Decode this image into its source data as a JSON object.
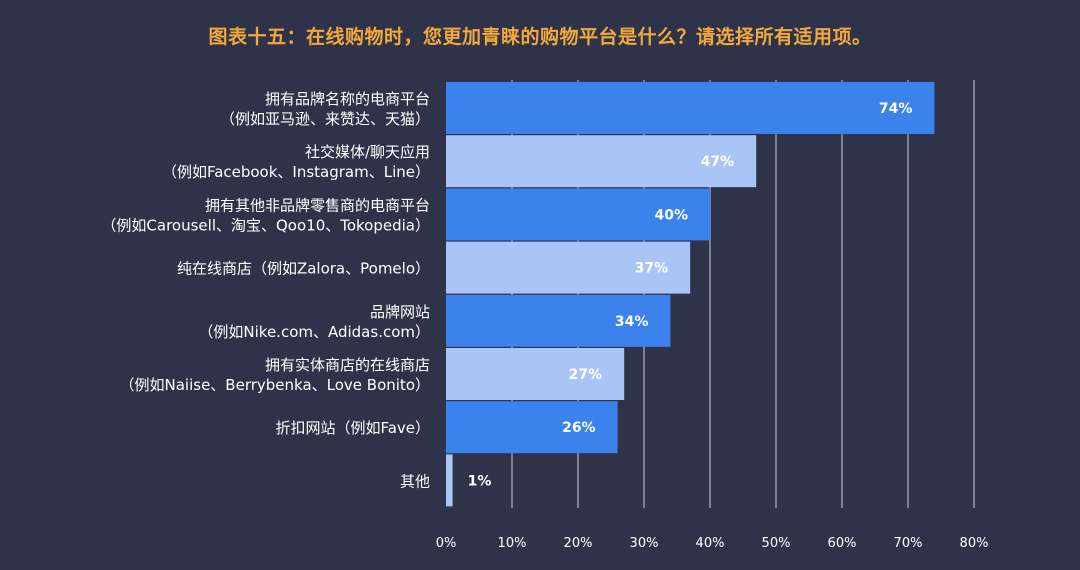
{
  "chart_data": {
    "type": "bar",
    "orientation": "horizontal",
    "title": "图表十五：在线购物时，您更加青睐的购物平台是什么？请选择所有适用项。",
    "categories": [
      [
        "拥有品牌名称的电商平台",
        "（例如亚马逊、来赞达、天猫）"
      ],
      [
        "社交媒体/聊天应用",
        "（例如Facebook、Instagram、Line）"
      ],
      [
        "拥有其他非品牌零售商的电商平台",
        "（例如Carousell、淘宝、Qoo10、Tokopedia）"
      ],
      [
        "纯在线商店（例如Zalora、Pomelo）"
      ],
      [
        "品牌网站",
        "（例如Nike.com、Adidas.com）"
      ],
      [
        "拥有实体商店的在线商店",
        "（例如Naiise、Berrybenka、Love Bonito）"
      ],
      [
        "折扣网站（例如Fave）"
      ],
      [
        "其他"
      ]
    ],
    "values": [
      74,
      47,
      40,
      37,
      34,
      27,
      26,
      1
    ],
    "value_labels": [
      "74%",
      "47%",
      "40%",
      "37%",
      "34%",
      "27%",
      "26%",
      "1%"
    ],
    "xlim": [
      0,
      80
    ],
    "x_ticks": [
      "0%",
      "10%",
      "20%",
      "30%",
      "40%",
      "50%",
      "60%",
      "70%",
      "80%"
    ],
    "grid": true,
    "colors": {
      "bar_dark": "#3b82ed",
      "bar_light": "#a9c4f5",
      "background": "#2f3349",
      "title": "#f2a93b"
    }
  }
}
